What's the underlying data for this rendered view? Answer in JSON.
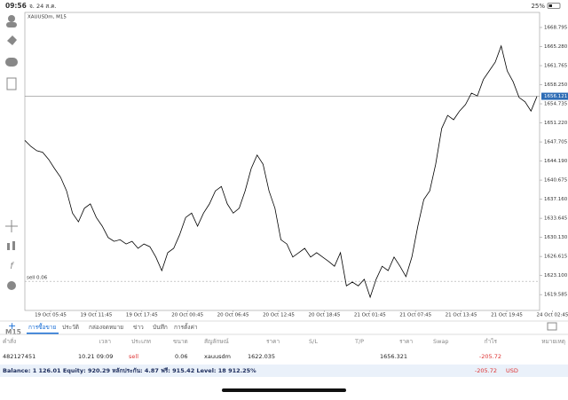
{
  "status": {
    "time": "09:56",
    "date": "จ. 24 ส.ค.",
    "battery": "25%"
  },
  "chart": {
    "type": "line",
    "title": "XAUUSDm, M15",
    "color": "#000000",
    "ylim": [
      1616.67,
      1671.57
    ],
    "yticks": [
      1668.795,
      {
        "value": 1665.28,
        "label": "1665.280"
      },
      1661.765,
      {
        "value": 1658.25,
        "label": "1658.250"
      },
      1654.735,
      {
        "value": 1651.22,
        "label": "1651.220"
      },
      1647.705,
      {
        "value": 1644.19,
        "label": "1644.190"
      },
      1640.675,
      {
        "value": 1637.16,
        "label": "1637.160"
      },
      1633.645,
      {
        "value": 1630.13,
        "label": "1630.130"
      },
      1626.615,
      {
        "value": 1623.1,
        "label": "1623.100"
      },
      1619.585
    ],
    "current_price": 1656.121,
    "order_line": {
      "label": "sell 0.06",
      "price": 1622.035
    },
    "xlabels": [
      "19 Oct 05:45",
      "19 Oct 11:45",
      "19 Oct 17:45",
      "20 Oct 00:45",
      "20 Oct 06:45",
      "20 Oct 12:45",
      "20 Oct 18:45",
      "21 Oct 01:45",
      "21 Oct 07:45",
      "21 Oct 13:45",
      "21 Oct 19:45",
      "24 Oct 02:45"
    ],
    "values": [
      1648.0,
      1646.9,
      1646.1,
      1645.8,
      1644.5,
      1642.8,
      1641.2,
      1638.7,
      1634.6,
      1633.0,
      1635.5,
      1636.3,
      1633.8,
      1632.2,
      1630.1,
      1629.4,
      1629.7,
      1628.9,
      1629.4,
      1628.1,
      1628.9,
      1628.4,
      1626.5,
      1624.0,
      1627.3,
      1628.1,
      1630.6,
      1633.8,
      1634.6,
      1632.2,
      1634.6,
      1636.3,
      1638.7,
      1639.5,
      1636.3,
      1634.6,
      1635.5,
      1638.7,
      1642.8,
      1645.3,
      1643.6,
      1638.7,
      1635.5,
      1629.7,
      1628.9,
      1626.5,
      1627.3,
      1628.1,
      1626.5,
      1627.3,
      1626.5,
      1625.7,
      1624.8,
      1627.3,
      1621.2,
      1621.9,
      1621.2,
      1622.4,
      1619.1,
      1622.4,
      1624.8,
      1624.0,
      1626.5,
      1624.8,
      1622.9,
      1626.5,
      1632.2,
      1637.1,
      1638.7,
      1643.6,
      1650.2,
      1652.6,
      1651.8,
      1653.4,
      1654.6,
      1656.7,
      1656.2,
      1659.2,
      1660.8,
      1662.4,
      1665.4,
      1660.8,
      1658.8,
      1655.9,
      1655.1,
      1653.4,
      1656.1
    ]
  },
  "timeframe": "M15",
  "tabs": [
    "การซื้อขาย",
    "ประวัติ",
    "กล่องจดหมาย",
    "ข่าว",
    "บันทึก",
    "การตั้งค่า"
  ],
  "table": {
    "header": [
      "คำสั่ง",
      "เวลา",
      "ประเภท",
      "ขนาด",
      "สัญลักษณ์",
      "ราคา",
      "S/L",
      "T/P",
      "ราคา",
      "Swap",
      "กำไร",
      "หมายเหตุ"
    ],
    "row": {
      "order": "482127451",
      "time": "10.21 09:09",
      "type": "sell",
      "volume": "0.06",
      "symbol": "xauusdm",
      "open_price": "1622.035",
      "price": "1656.321",
      "profit": "-205.72"
    }
  },
  "balance": {
    "text": "Balance: 1 126.01 Equity: 920.29 หลักประกัน: 4.87 ฟรี: 915.42 Level: 18 912.25%",
    "profit": "-205.72",
    "currency": "USD"
  }
}
